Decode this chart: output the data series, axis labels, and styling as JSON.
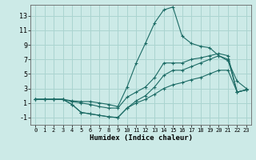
{
  "xlabel": "Humidex (Indice chaleur)",
  "background_color": "#cceae7",
  "grid_color": "#aad4d0",
  "line_color": "#1c6b65",
  "xlim": [
    -0.5,
    23.5
  ],
  "ylim": [
    -2,
    14.5
  ],
  "xticks": [
    0,
    1,
    2,
    3,
    4,
    5,
    6,
    7,
    8,
    9,
    10,
    11,
    12,
    13,
    14,
    15,
    16,
    17,
    18,
    19,
    20,
    21,
    22,
    23
  ],
  "yticks": [
    -1,
    1,
    3,
    5,
    7,
    9,
    11,
    13
  ],
  "series": [
    [
      1.5,
      1.5,
      1.5,
      1.5,
      1.3,
      1.2,
      1.2,
      1.0,
      0.8,
      0.5,
      3.2,
      6.5,
      9.2,
      12.0,
      13.8,
      14.2,
      10.2,
      9.2,
      8.8,
      8.6,
      7.5,
      6.8,
      4.0,
      3.0
    ],
    [
      1.5,
      1.5,
      1.5,
      1.5,
      1.2,
      1.0,
      0.8,
      0.5,
      0.3,
      0.3,
      1.8,
      2.5,
      3.2,
      4.5,
      6.5,
      6.5,
      6.5,
      7.0,
      7.2,
      7.5,
      7.8,
      7.5,
      2.5,
      2.8
    ],
    [
      1.5,
      1.5,
      1.5,
      1.5,
      0.8,
      -0.3,
      -0.5,
      -0.7,
      -0.9,
      -1.0,
      0.3,
      1.3,
      2.0,
      3.2,
      4.8,
      5.5,
      5.5,
      6.0,
      6.5,
      7.0,
      7.5,
      7.0,
      2.5,
      2.8
    ],
    [
      1.5,
      1.5,
      1.5,
      1.5,
      0.8,
      -0.3,
      -0.5,
      -0.7,
      -0.9,
      -1.0,
      0.3,
      1.0,
      1.5,
      2.2,
      3.0,
      3.5,
      3.8,
      4.2,
      4.5,
      5.0,
      5.5,
      5.5,
      2.5,
      2.8
    ]
  ]
}
